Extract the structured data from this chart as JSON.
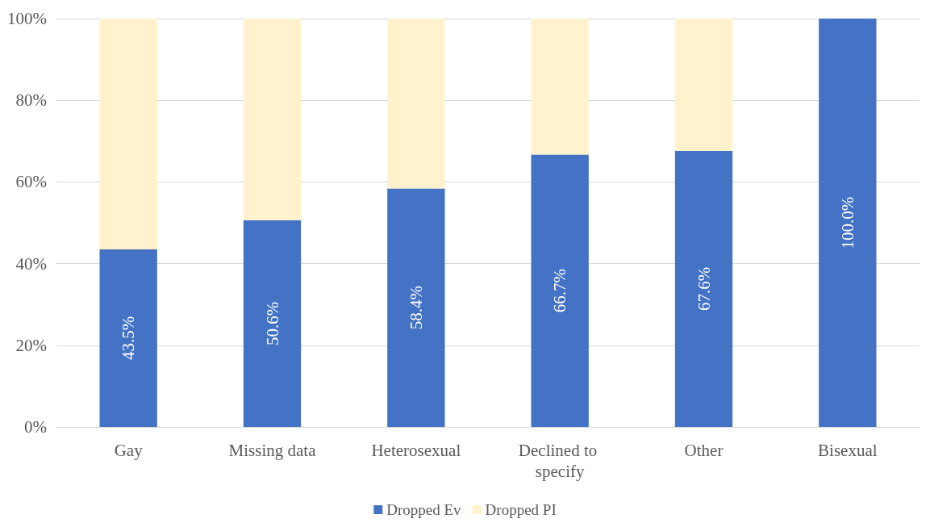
{
  "chart_data": {
    "type": "bar",
    "stacked": true,
    "categories": [
      "Gay",
      "Missing data",
      "Heterosexual",
      "Declined to specify",
      "Other",
      "Bisexual"
    ],
    "series": [
      {
        "name": "Dropped Ev",
        "color": "#4472c4",
        "values": [
          43.5,
          50.6,
          58.4,
          66.7,
          67.6,
          100
        ],
        "value_labels": [
          "43.5%",
          "50.6%",
          "58.4%",
          "66.7%",
          "67.6%",
          "100.0%"
        ]
      },
      {
        "name": "Dropped PI",
        "color": "#fff2cc",
        "values": [
          56.5,
          49.4,
          41.6,
          33.3,
          32.4,
          0
        ]
      }
    ],
    "ylim": [
      0,
      100
    ],
    "yticks": [
      {
        "value": 0,
        "label": "0%"
      },
      {
        "value": 20,
        "label": "20%"
      },
      {
        "value": 40,
        "label": "40%"
      },
      {
        "value": 60,
        "label": "60%"
      },
      {
        "value": 80,
        "label": "80%"
      },
      {
        "value": 100,
        "label": "100%"
      }
    ],
    "grid": "y",
    "legend": "bottom"
  }
}
